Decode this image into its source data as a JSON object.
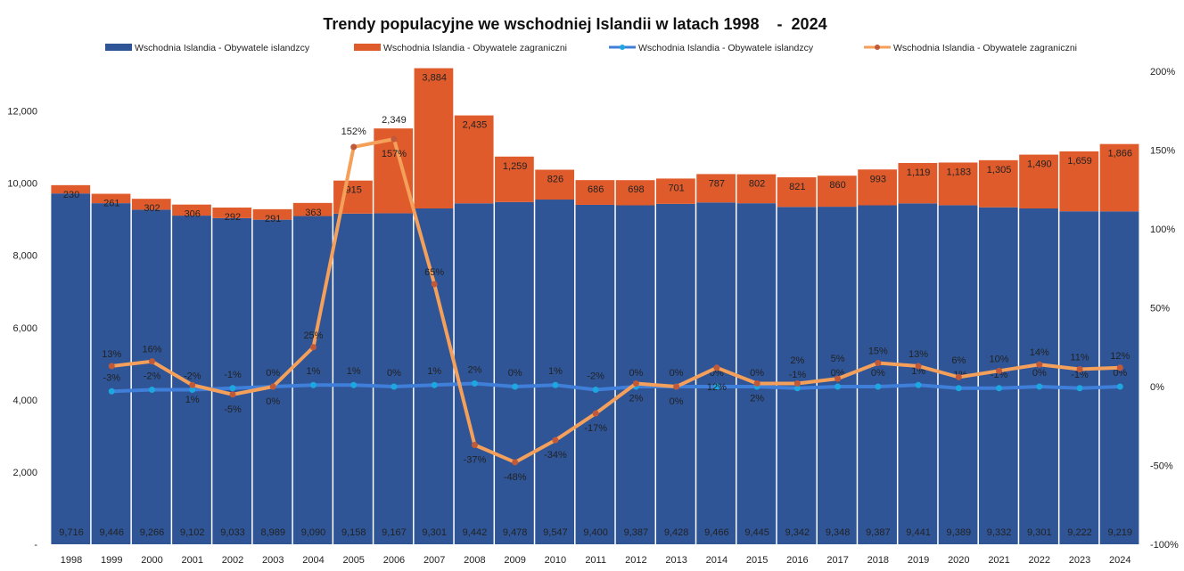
{
  "chart_data": {
    "type": "bar+line",
    "title": "Trendy populacyjne we wschodniej Islandii w latach 1998    -  2024",
    "categories": [
      "1998",
      "1999",
      "2000",
      "2001",
      "2002",
      "2003",
      "2004",
      "2005",
      "2006",
      "2007",
      "2008",
      "2009",
      "2010",
      "2011",
      "2012",
      "2013",
      "2014",
      "2015",
      "2016",
      "2017",
      "2018",
      "2019",
      "2020",
      "2021",
      "2022",
      "2023",
      "2024"
    ],
    "series": [
      {
        "name": "Wschodnia Islandia - Obywatele islandzcy",
        "kind": "stacked-bar",
        "axis": "left",
        "color": "#2F5597",
        "values": [
          9716,
          9446,
          9266,
          9102,
          9033,
          8989,
          9090,
          9158,
          9167,
          9301,
          9442,
          9478,
          9547,
          9400,
          9387,
          9428,
          9466,
          9445,
          9342,
          9348,
          9387,
          9441,
          9389,
          9332,
          9301,
          9222,
          9219
        ],
        "labels": [
          "9,716",
          "9,446",
          "9,266",
          "9,102",
          "9,033",
          "8,989",
          "9,090",
          "9,158",
          "9,167",
          "9,301",
          "9,442",
          "9,478",
          "9,547",
          "9,400",
          "9,387",
          "9,428",
          "9,466",
          "9,445",
          "9,342",
          "9,348",
          "9,387",
          "9,441",
          "9,389",
          "9,332",
          "9,301",
          "9,222",
          "9,219"
        ]
      },
      {
        "name": "Wschodnia Islandia - Obywatele zagraniczni",
        "kind": "stacked-bar",
        "axis": "left",
        "color": "#E05B2B",
        "values": [
          230,
          261,
          302,
          306,
          292,
          291,
          363,
          915,
          2349,
          3884,
          2435,
          1259,
          826,
          686,
          698,
          701,
          787,
          802,
          821,
          860,
          993,
          1119,
          1183,
          1305,
          1490,
          1659,
          1866
        ],
        "labels": [
          "230",
          "261",
          "302",
          "306",
          "292",
          "291",
          "363",
          "915",
          "2,349",
          "3,884",
          "2,435",
          "1,259",
          "826",
          "686",
          "698",
          "701",
          "787",
          "802",
          "821",
          "860",
          "993",
          "1,119",
          "1,183",
          "1,305",
          "1,490",
          "1,659",
          "1,866"
        ]
      },
      {
        "name": "Wschodnia Islandia - Obywatele islandzcy",
        "kind": "line",
        "axis": "right",
        "color": "#3F7FD9",
        "marker_color": "#1CA7E0",
        "values": [
          null,
          -3,
          -2,
          -2,
          -1,
          0,
          1,
          1,
          0,
          1,
          2,
          0,
          1,
          -2,
          0,
          0,
          0,
          0,
          -1,
          0,
          0,
          1,
          -1,
          -1,
          0,
          -1,
          0
        ],
        "labels": [
          "",
          "-3%",
          "-2%",
          "-2%",
          "-1%",
          "0%",
          "1%",
          "1%",
          "0%",
          "1%",
          "2%",
          "0%",
          "1%",
          "-2%",
          "0%",
          "0%",
          "0%",
          "0%",
          "-1%",
          "0%",
          "0%",
          "1%",
          "-1%",
          "-1%",
          "0%",
          "-1%",
          "0%"
        ]
      },
      {
        "name": "Wschodnia Islandia - Obywatele zagraniczni",
        "kind": "line",
        "axis": "right",
        "color": "#F4A05A",
        "marker_color": "#C0583A",
        "values": [
          null,
          13,
          16,
          1,
          -5,
          0,
          25,
          152,
          157,
          65,
          -37,
          -48,
          -34,
          -17,
          2,
          0,
          12,
          2,
          2,
          5,
          15,
          13,
          6,
          10,
          14,
          11,
          12
        ],
        "labels": [
          "",
          "13%",
          "16%",
          "1%",
          "-5%",
          "0%",
          "25%",
          "152%",
          "157%",
          "65%",
          "-37%",
          "-48%",
          "-34%",
          "-17%",
          "2%",
          "0%",
          "12%",
          "2%",
          "2%",
          "5%",
          "15%",
          "13%",
          "6%",
          "10%",
          "14%",
          "11%",
          "12%"
        ]
      }
    ],
    "y_left": {
      "range": [
        0,
        13100
      ],
      "ticks": [
        0,
        2000,
        4000,
        6000,
        8000,
        10000,
        12000
      ],
      "tick_labels": [
        "-",
        "2,000",
        "4,000",
        "6,000",
        "8,000",
        "10,000",
        "12,000"
      ]
    },
    "y_right": {
      "range": [
        -100,
        200
      ],
      "ticks": [
        -100,
        -50,
        0,
        50,
        100,
        150,
        200
      ],
      "tick_labels": [
        "-100%",
        "-50%",
        "0%",
        "50%",
        "100%",
        "150%",
        "200%"
      ]
    },
    "legend": "top",
    "grid": false
  }
}
